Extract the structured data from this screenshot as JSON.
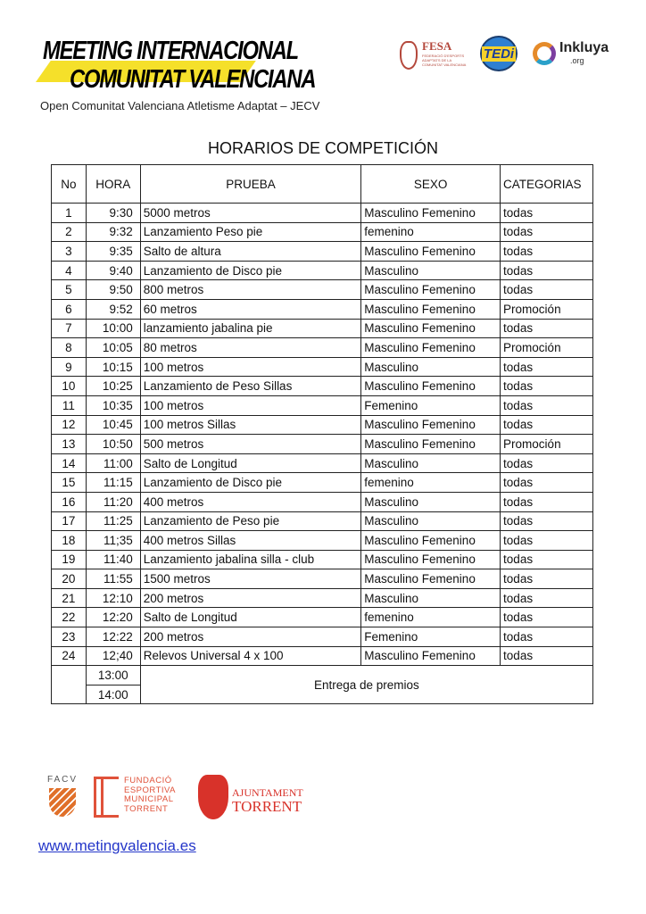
{
  "header": {
    "brand_line1": "MEETING INTERNACIONAL",
    "brand_line2": "COMUNITAT VALENCIANA",
    "subtitle": "Open Comunitat Valenciana Atletisme Adaptat – JECV",
    "logos": [
      "FESA",
      "TEDi",
      "Inkluya"
    ],
    "fesa_sub": "FEDERACIÓ D'ESPORTS ADAPTATS DE LA COMUNITAT VALENCIANA",
    "inkluya_sub": ".org"
  },
  "title": "HORARIOS DE COMPETICIÓN",
  "table": {
    "columns": [
      "No",
      "HORA",
      "PRUEBA",
      "SEXO",
      "CATEGORIAS"
    ],
    "rows": [
      [
        "1",
        "9:30",
        "5000 metros",
        "Masculino Femenino",
        "todas"
      ],
      [
        "2",
        "9:32",
        "Lanzamiento Peso pie",
        "femenino",
        "todas"
      ],
      [
        "3",
        "9:35",
        "Salto de altura",
        "Masculino Femenino",
        "todas"
      ],
      [
        "4",
        "9:40",
        "Lanzamiento de Disco pie",
        "Masculino",
        "todas"
      ],
      [
        "5",
        "9:50",
        "800 metros",
        "Masculino Femenino",
        "todas"
      ],
      [
        "6",
        "9:52",
        "60 metros",
        "Masculino Femenino",
        "Promoción"
      ],
      [
        "7",
        "10:00",
        "lanzamiento jabalina pie",
        "Masculino Femenino",
        "todas"
      ],
      [
        "8",
        "10:05",
        "80 metros",
        "Masculino Femenino",
        "Promoción"
      ],
      [
        "9",
        "10:15",
        "100 metros",
        "Masculino",
        "todas"
      ],
      [
        "10",
        "10:25",
        "Lanzamiento de Peso Sillas",
        "Masculino Femenino",
        "todas"
      ],
      [
        "11",
        "10:35",
        "100 metros",
        "Femenino",
        "todas"
      ],
      [
        "12",
        "10:45",
        "100 metros Sillas",
        "Masculino Femenino",
        "todas"
      ],
      [
        "13",
        "10:50",
        "500 metros",
        "Masculino Femenino",
        "Promoción"
      ],
      [
        "14",
        "11:00",
        "Salto de Longitud",
        "Masculino",
        "todas"
      ],
      [
        "15",
        "11:15",
        "Lanzamiento de Disco pie",
        "femenino",
        "todas"
      ],
      [
        "16",
        "11:20",
        "400 metros",
        "Masculino",
        "todas"
      ],
      [
        "17",
        "11:25",
        "Lanzamiento de Peso pie",
        "Masculino",
        "todas"
      ],
      [
        "18",
        "11;35",
        "400 metros Sillas",
        "Masculino Femenino",
        "todas"
      ],
      [
        "19",
        "11:40",
        "Lanzamiento jabalina silla - club",
        "Masculino Femenino",
        "todas"
      ],
      [
        "20",
        "11:55",
        "1500 metros",
        "Masculino Femenino",
        "todas"
      ],
      [
        "21",
        "12:10",
        "200 metros",
        "Masculino",
        "todas"
      ],
      [
        "22",
        "12:20",
        "Salto de Longitud",
        "femenino",
        "todas"
      ],
      [
        "23",
        "12:22",
        "200 metros",
        "Femenino",
        "todas"
      ],
      [
        "24",
        "12;40",
        "Relevos Universal 4 x 100",
        "Masculino Femenino",
        "todas"
      ]
    ],
    "awards_times": [
      "13:00",
      "14:00"
    ],
    "awards_label": "Entrega de premios"
  },
  "footer": {
    "logos": [
      "FACV",
      "FUNDACIÓ ESPORTIVA MUNICIPAL TORRENT",
      "AJUNTAMENT TORRENT"
    ],
    "fundacio": [
      "FUNDACIÓ",
      "ESPORTIVA",
      "MUNICIPAL",
      "TORRENT"
    ],
    "ajuntament": [
      "AJUNTAMENT",
      "TORRENT"
    ],
    "website": "www.metingvalencia.es"
  },
  "colors": {
    "brand_yellow": "#f5e02a",
    "footer_red": "#e0523a",
    "link": "#2436c9"
  }
}
